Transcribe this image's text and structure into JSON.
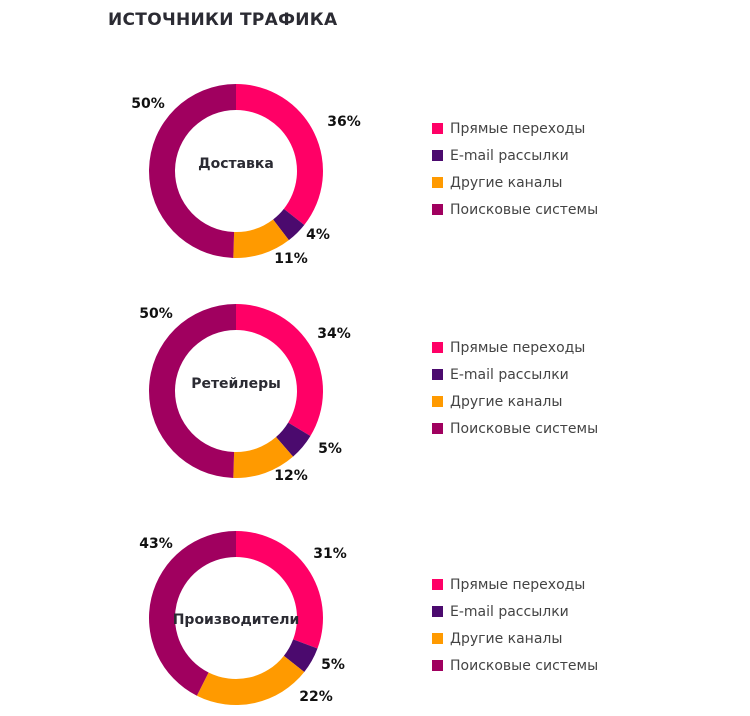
{
  "title": "ИСТОЧНИКИ ТРАФИКА",
  "legend": [
    "Прямые переходы",
    "E-mail рассылки",
    "Другие каналы",
    "Поисковые системы"
  ],
  "colors": [
    "#ff0066",
    "#4b0a6e",
    "#ff9a00",
    "#a0005f"
  ],
  "chart_data": [
    {
      "type": "pie",
      "title": "Доставка",
      "categories": [
        "Прямые переходы",
        "E-mail рассылки",
        "Другие каналы",
        "Поисковые системы"
      ],
      "values": [
        36,
        4,
        11,
        50
      ],
      "labels": [
        "36%",
        "4%",
        "11%",
        "50%"
      ],
      "legend": "right"
    },
    {
      "type": "pie",
      "title": "Ретейлеры",
      "categories": [
        "Прямые переходы",
        "E-mail рассылки",
        "Другие каналы",
        "Поисковые системы"
      ],
      "values": [
        34,
        5,
        12,
        50
      ],
      "labels": [
        "34%",
        "5%",
        "12%",
        "50%"
      ],
      "legend": "right"
    },
    {
      "type": "pie",
      "title": "Производители",
      "categories": [
        "Прямые переходы",
        "E-mail рассылки",
        "Другие каналы",
        "Поисковые системы"
      ],
      "values": [
        31,
        5,
        22,
        43
      ],
      "labels": [
        "31%",
        "5%",
        "22%",
        "43%"
      ],
      "legend": "right"
    }
  ]
}
